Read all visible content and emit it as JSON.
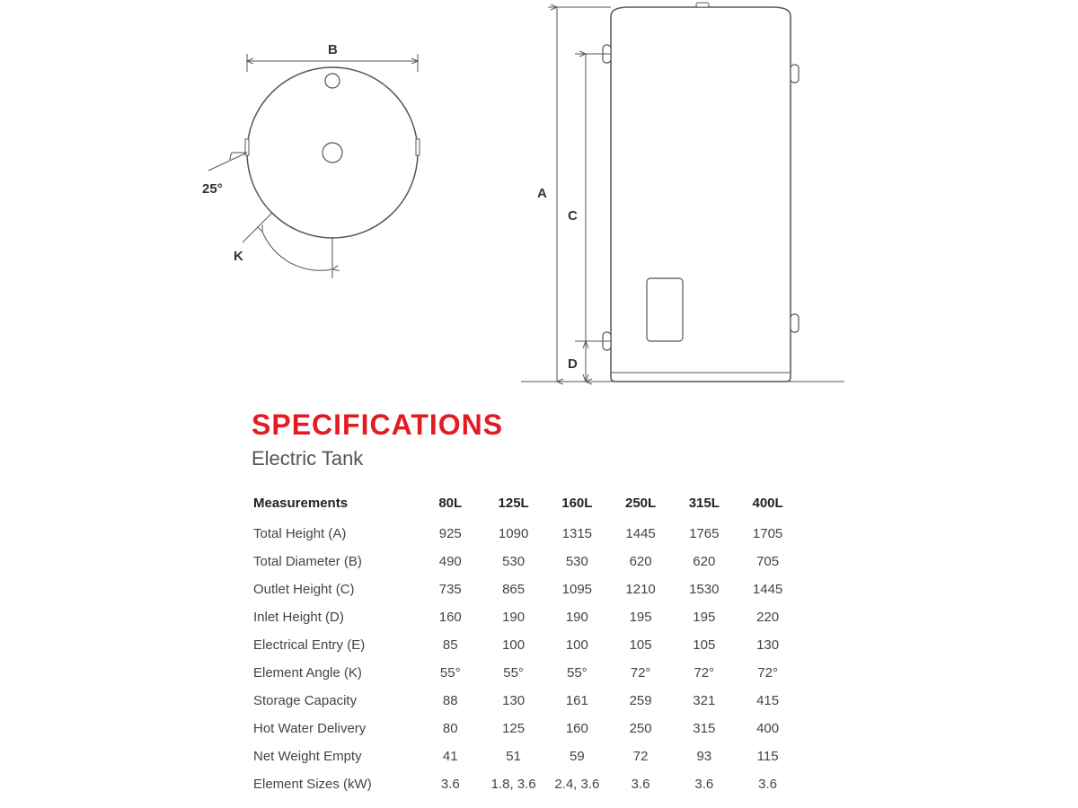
{
  "colors": {
    "title": "#e31b23",
    "text": "#333333",
    "subtext": "#555555",
    "line": "#555555",
    "bg": "#ffffff"
  },
  "diagram": {
    "top_label_B": "B",
    "angle_label": "25°",
    "label_K": "K",
    "label_A": "A",
    "label_C": "C",
    "label_D": "D"
  },
  "title": "SPECIFICATIONS",
  "subtitle": "Electric Tank",
  "table": {
    "row_header": "Measurements",
    "columns": [
      "80L",
      "125L",
      "160L",
      "250L",
      "315L",
      "400L"
    ],
    "rows": [
      {
        "label": "Total Height (A)",
        "values": [
          "925",
          "1090",
          "1315",
          "1445",
          "1765",
          "1705"
        ]
      },
      {
        "label": "Total Diameter (B)",
        "values": [
          "490",
          "530",
          "530",
          "620",
          "620",
          "705"
        ]
      },
      {
        "label": "Outlet Height (C)",
        "values": [
          "735",
          "865",
          "1095",
          "1210",
          "1530",
          "1445"
        ]
      },
      {
        "label": "Inlet Height (D)",
        "values": [
          "160",
          "190",
          "190",
          "195",
          "195",
          "220"
        ]
      },
      {
        "label": "Electrical Entry (E)",
        "values": [
          "85",
          "100",
          "100",
          "105",
          "105",
          "130"
        ]
      },
      {
        "label": "Element Angle (K)",
        "values": [
          "55°",
          "55°",
          "55°",
          "72°",
          "72°",
          "72°"
        ]
      },
      {
        "label": "Storage Capacity",
        "values": [
          "88",
          "130",
          "161",
          "259",
          "321",
          "415"
        ]
      },
      {
        "label": "Hot Water Delivery",
        "values": [
          "80",
          "125",
          "160",
          "250",
          "315",
          "400"
        ]
      },
      {
        "label": "Net Weight Empty",
        "values": [
          "41",
          "51",
          "59",
          "72",
          "93",
          "115"
        ]
      },
      {
        "label": "Element Sizes (kW)",
        "values": [
          "3.6",
          "1.8, 3.6",
          "2.4, 3.6",
          "3.6",
          "3.6",
          "3.6"
        ]
      }
    ]
  }
}
